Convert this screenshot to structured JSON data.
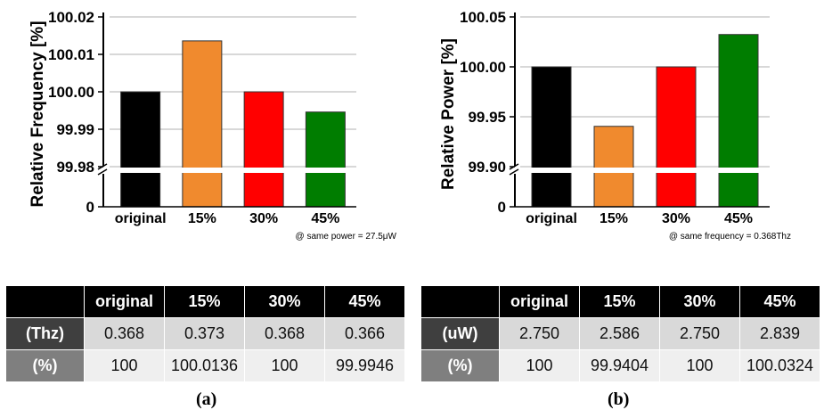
{
  "chart_data": [
    {
      "type": "bar",
      "ylabel": "Relative Frequency [%]",
      "categories": [
        "original",
        "15%",
        "30%",
        "45%"
      ],
      "values": [
        100.0,
        100.0136,
        100.0,
        99.9946
      ],
      "colors": [
        "#000000",
        "#f08a2e",
        "#ff0000",
        "#007d00"
      ],
      "yticks": [
        "100.02",
        "100.01",
        "100.00",
        "99.99",
        "99.98"
      ],
      "ytick_values": [
        100.02,
        100.01,
        100.0,
        99.99,
        99.98
      ],
      "zero_label": "0",
      "ylim": [
        99.98,
        100.02
      ],
      "axis_break": true,
      "grid": true,
      "note": "@ same power = 27.5μW"
    },
    {
      "type": "bar",
      "ylabel": "Relative Power [%]",
      "categories": [
        "original",
        "15%",
        "30%",
        "45%"
      ],
      "values": [
        100.0,
        99.9404,
        100.0,
        100.0324
      ],
      "colors": [
        "#000000",
        "#f08a2e",
        "#ff0000",
        "#007d00"
      ],
      "yticks": [
        "100.05",
        "100.00",
        "99.95",
        "99.90"
      ],
      "ytick_values": [
        100.05,
        100.0,
        99.95,
        99.9
      ],
      "zero_label": "0",
      "ylim": [
        99.9,
        100.05
      ],
      "axis_break": true,
      "grid": true,
      "note": "@ same frequency = 0.368Thz"
    }
  ],
  "tables": [
    {
      "headers": [
        "",
        "original",
        "15%",
        "30%",
        "45%"
      ],
      "rows": [
        {
          "label": "(Thz)",
          "cells": [
            "0.368",
            "0.373",
            "0.368",
            "0.366"
          ]
        },
        {
          "label": "(%)",
          "cells": [
            "100",
            "100.0136",
            "100",
            "99.9946"
          ]
        }
      ],
      "caption": "(a)"
    },
    {
      "headers": [
        "",
        "original",
        "15%",
        "30%",
        "45%"
      ],
      "rows": [
        {
          "label": "(uW)",
          "cells": [
            "2.750",
            "2.586",
            "2.750",
            "2.839"
          ]
        },
        {
          "label": "(%)",
          "cells": [
            "100",
            "99.9404",
            "100",
            "100.0324"
          ]
        }
      ],
      "caption": "(b)"
    }
  ]
}
